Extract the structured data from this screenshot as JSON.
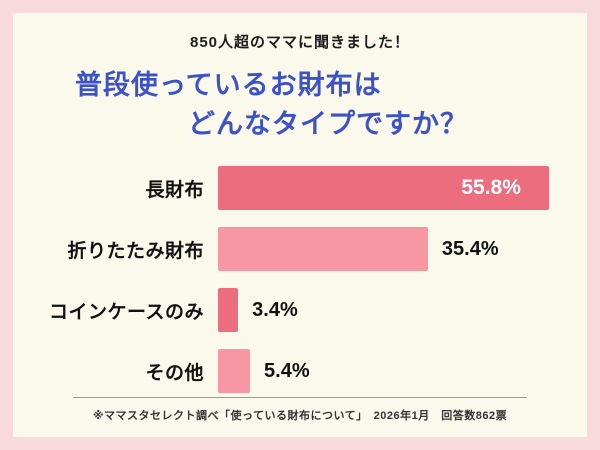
{
  "page": {
    "header_badge": "850人超のママに聞きました！",
    "title_line1": "普段使っているお財布は",
    "title_line2": "どんなタイプですか？",
    "footer": "※ママスタセレクト調べ「使っている財布について」　2026年1月　回答数862票"
  },
  "colors": {
    "background": "#f8dada",
    "card": "#fbf8ec",
    "title_blue": "#3c52c8",
    "bar_dark": "#ec6e7e",
    "bar_light": "#f897a4"
  },
  "chart_data": {
    "type": "bar",
    "orientation": "horizontal",
    "title": "普段使っているお財布は どんなタイプですか？",
    "categories": [
      "長財布",
      "折りたたみ財布",
      "コインケースのみ",
      "その他"
    ],
    "values": [
      55.8,
      35.4,
      3.4,
      5.4
    ],
    "value_labels": [
      "55.8%",
      "35.4%",
      "3.4%",
      "5.4%"
    ],
    "xlabel": "",
    "ylabel": "",
    "xlim": [
      0,
      57.5
    ],
    "grid": false,
    "legend": false,
    "note": "回答数862票、2026年1月、ママスタセレクト調べ"
  }
}
